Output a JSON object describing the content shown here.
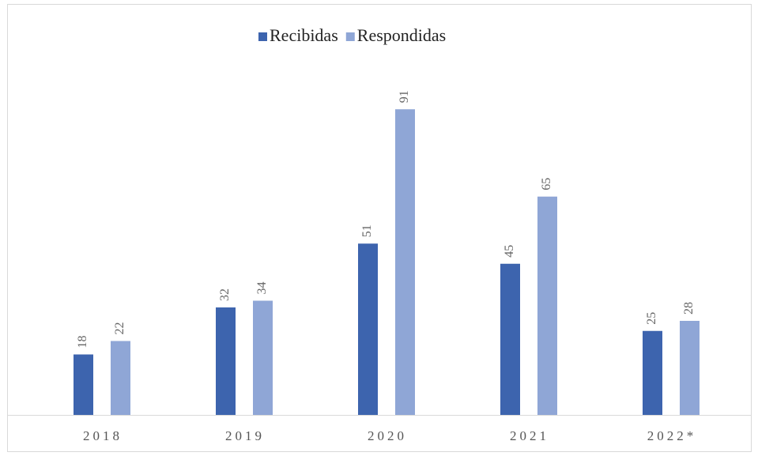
{
  "chart_data": {
    "type": "bar",
    "categories": [
      "2018",
      "2019",
      "2020",
      "2021",
      "2022*"
    ],
    "series": [
      {
        "name": "Recibidas",
        "color": "#3d64ae",
        "values": [
          18,
          32,
          51,
          45,
          25
        ]
      },
      {
        "name": "Respondidas",
        "color": "#8fa6d6",
        "values": [
          22,
          34,
          91,
          65,
          28
        ]
      }
    ],
    "legend": "top"
  }
}
